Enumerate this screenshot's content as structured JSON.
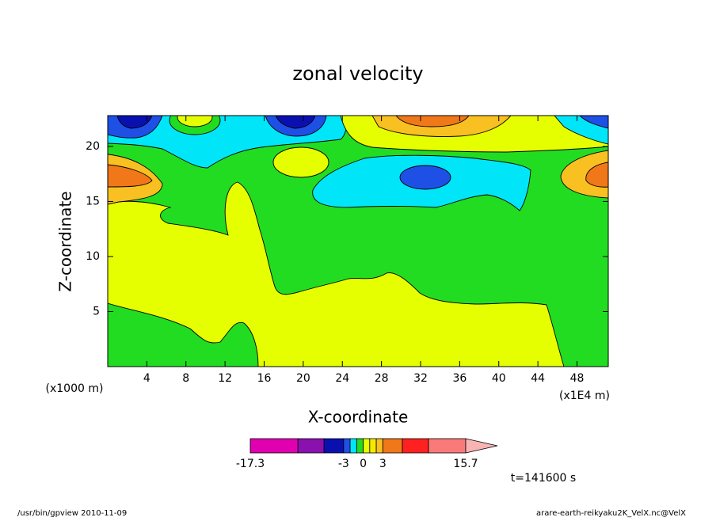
{
  "chart_data": {
    "type": "contour",
    "title": "zonal velocity",
    "x_label": "X-coordinate",
    "y_label": "Z-coordinate",
    "x_unit_left": "(x1000 m)",
    "x_unit_right": "(x1E4 m)",
    "xlim": [
      0,
      51.2
    ],
    "xticks": [
      4,
      8,
      12,
      16,
      20,
      24,
      28,
      32,
      36,
      40,
      44,
      48
    ],
    "ylim": [
      0,
      22.8
    ],
    "yticks": [
      5,
      10,
      15,
      20
    ],
    "colorbar": {
      "boundaries": [
        -17.3,
        -10,
        -6,
        -3,
        -2,
        -1,
        0,
        1,
        2,
        3,
        6,
        10,
        15.7
      ],
      "colors": [
        "#e000b0",
        "#8a10b0",
        "#0a10b0",
        "#1e50e6",
        "#00e6f8",
        "#22dc22",
        "#e6ff00",
        "#f8e800",
        "#f8c020",
        "#f07818",
        "#ff2020",
        "#fa7a7a"
      ],
      "extend_color": "#f8b4b4",
      "ticks": [
        -17.3,
        -3,
        0,
        3,
        15.7
      ]
    },
    "time_label": "t=141600 s"
  },
  "footer": {
    "left": "/usr/bin/gpview  2010-11-09",
    "right": "arare-earth-reikyaku2K_VelX.nc@VelX"
  }
}
